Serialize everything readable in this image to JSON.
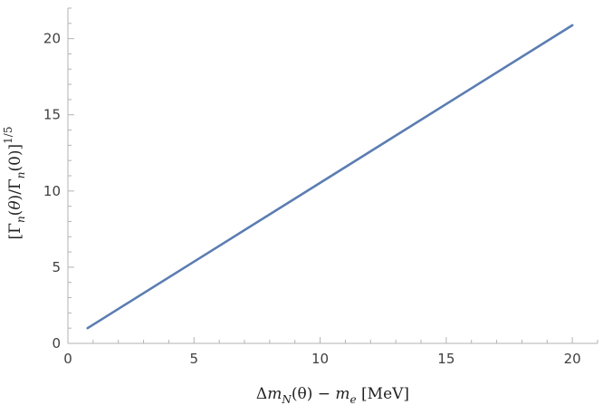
{
  "chart_data": {
    "type": "line",
    "title": "",
    "xlabel": "Δm_N(θ) − m_e [MeV]",
    "ylabel": "[Γ_n(θ)/Γ_n(0)]^{1/5}",
    "xlim": [
      0,
      21
    ],
    "ylim": [
      0,
      22
    ],
    "x_ticks": [
      0,
      5,
      10,
      15,
      20
    ],
    "y_ticks": [
      0,
      5,
      10,
      15,
      20
    ],
    "grid": false,
    "series": [
      {
        "color": "#5b7db3",
        "x": [
          0.78,
          20.0
        ],
        "y": [
          1.0,
          20.88
        ]
      }
    ]
  }
}
